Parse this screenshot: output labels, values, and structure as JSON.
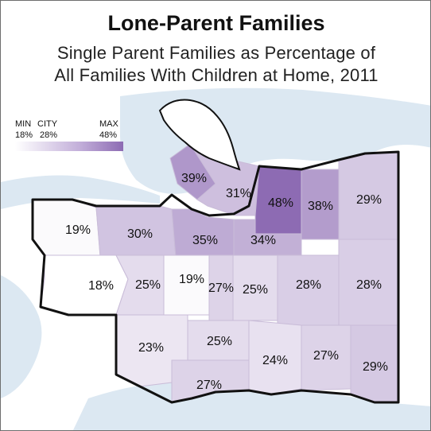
{
  "title": "Lone-Parent Families",
  "subtitle_line1": "Single Parent Families as Percentage of",
  "subtitle_line2": "All Families With Children at Home, 2011",
  "legend": {
    "min_label": "MIN",
    "city_label": "CITY",
    "max_label": "MAX",
    "min_value": "18%",
    "city_value": "28%",
    "max_value": "48%"
  },
  "regions": [
    {
      "label": "39%",
      "value": 39
    },
    {
      "label": "31%",
      "value": 31
    },
    {
      "label": "48%",
      "value": 48
    },
    {
      "label": "38%",
      "value": 38
    },
    {
      "label": "29%",
      "value": 29
    },
    {
      "label": "19%",
      "value": 19
    },
    {
      "label": "30%",
      "value": 30
    },
    {
      "label": "35%",
      "value": 35
    },
    {
      "label": "34%",
      "value": 34
    },
    {
      "label": "18%",
      "value": 18
    },
    {
      "label": "25%",
      "value": 25
    },
    {
      "label": "19%",
      "value": 19
    },
    {
      "label": "27%",
      "value": 27
    },
    {
      "label": "25%",
      "value": 25
    },
    {
      "label": "28%",
      "value": 28
    },
    {
      "label": "28%",
      "value": 28
    },
    {
      "label": "23%",
      "value": 23
    },
    {
      "label": "25%",
      "value": 25
    },
    {
      "label": "24%",
      "value": 24
    },
    {
      "label": "27%",
      "value": 27
    },
    {
      "label": "29%",
      "value": 29
    },
    {
      "label": "27%",
      "value": 27
    }
  ],
  "colors": {
    "water": "#dce8f2",
    "scale_min": "#ffffff",
    "scale_max": "#8d6bb3",
    "border": "#111111"
  }
}
